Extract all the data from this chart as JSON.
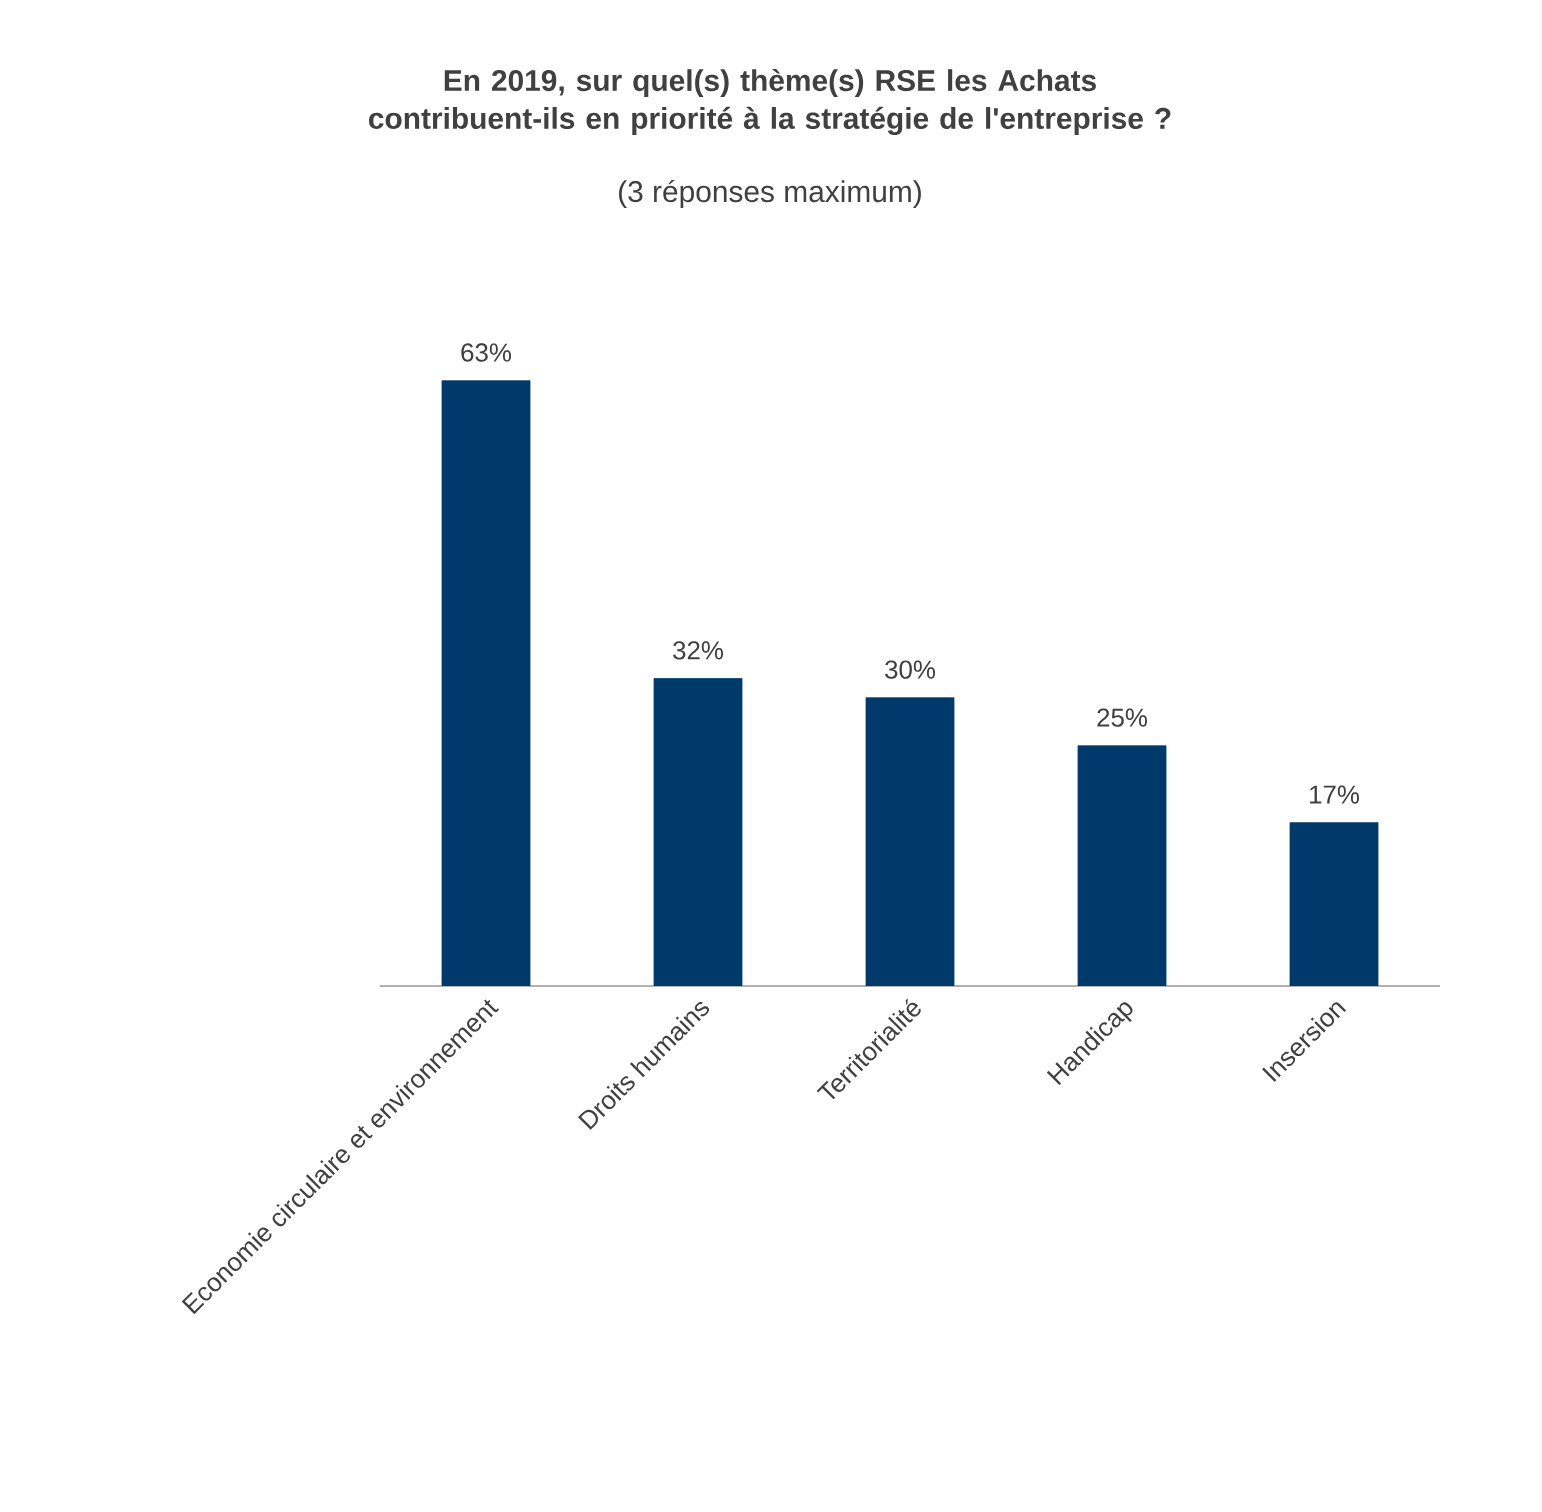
{
  "chart_data": {
    "type": "bar",
    "title": "En 2019, sur quel(s) thème(s) RSE les Achats contribuent-ils en priorité à la stratégie de l'entreprise ?",
    "subtitle": "(3 réponses maximum)",
    "categories": [
      "Economie circulaire et environnement",
      "Droits humains",
      "Territorialité",
      "Handicap",
      "Insersion"
    ],
    "values": [
      63,
      32,
      30,
      25,
      17
    ],
    "value_labels": [
      "63%",
      "32%",
      "30%",
      "25%",
      "17%"
    ],
    "color": "#003a6b"
  }
}
